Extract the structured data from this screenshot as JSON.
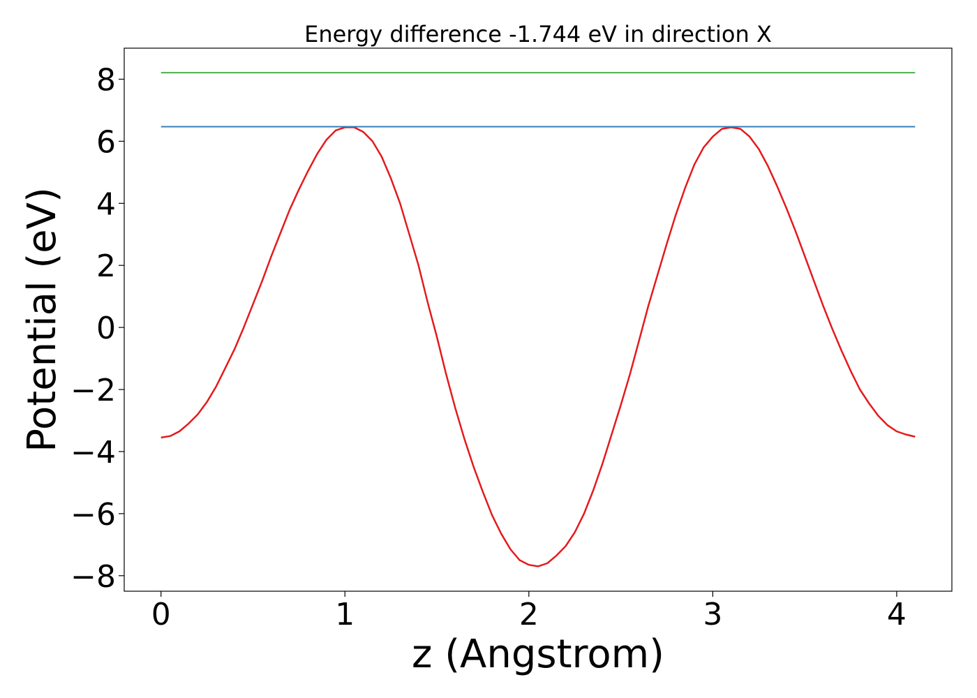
{
  "chart_data": {
    "type": "line",
    "title": "Energy difference -1.744 eV in direction X",
    "xlabel": "z (Angstrom)",
    "ylabel": "Potential (eV)",
    "xlim": [
      -0.2,
      4.3
    ],
    "ylim": [
      -8.5,
      9.0
    ],
    "xticks": [
      0,
      1,
      2,
      3,
      4
    ],
    "xtick_labels": [
      "0",
      "1",
      "2",
      "3",
      "4"
    ],
    "yticks": [
      -8,
      -6,
      -4,
      -2,
      0,
      2,
      4,
      6,
      8
    ],
    "ytick_labels": [
      "−8",
      "−6",
      "−4",
      "−2",
      "0",
      "2",
      "4",
      "6",
      "8"
    ],
    "grid": false,
    "series": [
      {
        "color": "#e41a1c",
        "x": [
          0.0,
          0.05,
          0.1,
          0.15,
          0.2,
          0.25,
          0.3,
          0.35,
          0.4,
          0.45,
          0.5,
          0.55,
          0.6,
          0.65,
          0.7,
          0.75,
          0.8,
          0.85,
          0.9,
          0.95,
          1.0,
          1.05,
          1.1,
          1.15,
          1.2,
          1.25,
          1.3,
          1.35,
          1.4,
          1.45,
          1.5,
          1.55,
          1.6,
          1.65,
          1.7,
          1.75,
          1.8,
          1.85,
          1.9,
          1.95,
          2.0,
          2.05,
          2.1,
          2.15,
          2.2,
          2.25,
          2.3,
          2.35,
          2.4,
          2.45,
          2.5,
          2.55,
          2.6,
          2.65,
          2.7,
          2.75,
          2.8,
          2.85,
          2.9,
          2.95,
          3.0,
          3.05,
          3.1,
          3.15,
          3.2,
          3.25,
          3.3,
          3.35,
          3.4,
          3.45,
          3.5,
          3.55,
          3.6,
          3.65,
          3.7,
          3.75,
          3.8,
          3.85,
          3.9,
          3.95,
          4.0,
          4.05,
          4.1
        ],
        "y": [
          -3.55,
          -3.5,
          -3.35,
          -3.1,
          -2.8,
          -2.4,
          -1.9,
          -1.3,
          -0.7,
          0.0,
          0.75,
          1.5,
          2.3,
          3.05,
          3.8,
          4.45,
          5.05,
          5.6,
          6.05,
          6.35,
          6.45,
          6.45,
          6.3,
          6.0,
          5.5,
          4.8,
          4.0,
          3.0,
          2.0,
          0.8,
          -0.3,
          -1.5,
          -2.6,
          -3.6,
          -4.5,
          -5.3,
          -6.05,
          -6.65,
          -7.15,
          -7.5,
          -7.65,
          -7.7,
          -7.6,
          -7.35,
          -7.05,
          -6.6,
          -6.0,
          -5.25,
          -4.4,
          -3.45,
          -2.5,
          -1.5,
          -0.4,
          0.7,
          1.7,
          2.7,
          3.65,
          4.5,
          5.25,
          5.8,
          6.15,
          6.4,
          6.45,
          6.4,
          6.15,
          5.75,
          5.2,
          4.55,
          3.85,
          3.1,
          2.3,
          1.5,
          0.7,
          -0.05,
          -0.75,
          -1.4,
          -2.0,
          -2.45,
          -2.85,
          -3.15,
          -3.35,
          -3.45,
          -3.52
        ]
      },
      {
        "color": "#377eb8",
        "x": [
          0.0,
          4.1
        ],
        "y": [
          6.47,
          6.47
        ]
      },
      {
        "color": "#4daf4a",
        "x": [
          0.0,
          4.1
        ],
        "y": [
          8.21,
          8.21
        ]
      }
    ]
  }
}
